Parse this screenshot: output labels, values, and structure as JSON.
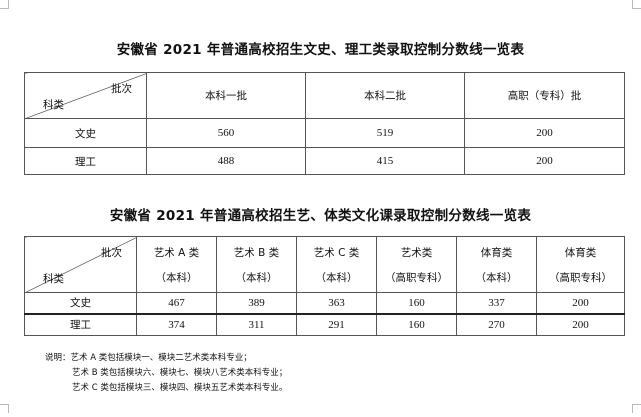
{
  "table1": {
    "title": "安徽省 2021 年普通高校招生文史、理工类录取控制分数线一览表",
    "corner_top": "批次",
    "corner_bottom": "科类",
    "columns": [
      "本科一批",
      "本科二批",
      "高职（专科）批"
    ],
    "rows": [
      {
        "label": "文史",
        "values": [
          "560",
          "519",
          "200"
        ]
      },
      {
        "label": "理工",
        "values": [
          "488",
          "415",
          "200"
        ]
      }
    ]
  },
  "table2": {
    "title": "安徽省 2021 年普通高校招生艺、体类文化课录取控制分数线一览表",
    "corner_top": "批次",
    "corner_bottom": "科类",
    "columns": [
      {
        "l1": "艺术 A 类",
        "l2": "（本科）"
      },
      {
        "l1": "艺术 B 类",
        "l2": "（本科）"
      },
      {
        "l1": "艺术 C 类",
        "l2": "（本科）"
      },
      {
        "l1": "艺术类",
        "l2": "（高职专科）"
      },
      {
        "l1": "体育类",
        "l2": "（本科）"
      },
      {
        "l1": "体育类",
        "l2": "（高职专科）"
      }
    ],
    "rows": [
      {
        "label": "文史",
        "values": [
          "467",
          "389",
          "363",
          "160",
          "337",
          "200"
        ]
      },
      {
        "label": "理工",
        "values": [
          "374",
          "311",
          "291",
          "160",
          "270",
          "200"
        ]
      }
    ]
  },
  "notes": [
    "说明：艺术 A 类包括模块一、模块二艺术类本科专业；",
    "艺术 B 类包括模块六、模块七、模块八艺术类本科专业；",
    "艺术 C 类包括模块三、模块四、模块五艺术类本科专业。"
  ]
}
